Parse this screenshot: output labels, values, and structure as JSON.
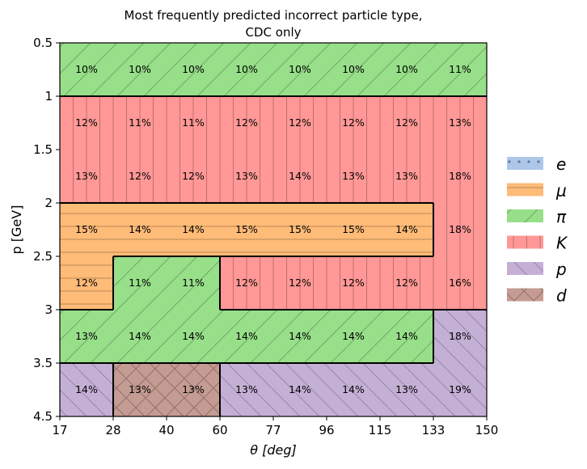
{
  "title_line1": "Most frequently predicted incorrect particle type,",
  "title_line2": "CDC only",
  "xlabel": "θ [deg]",
  "ylabel": "p [GeV]",
  "chart_data": {
    "type": "heatmap",
    "title": "Most frequently predicted incorrect particle type, CDC only",
    "xlabel": "θ [deg]",
    "ylabel": "p [GeV]",
    "x_ticks": [
      "17",
      "28",
      "40",
      "60",
      "77",
      "96",
      "115",
      "133",
      "150"
    ],
    "y_ticks": [
      "0.5",
      "1",
      "1.5",
      "2",
      "2.5",
      "3",
      "3.5",
      "4.5"
    ],
    "legend": [
      {
        "label": "e",
        "color": "#aec7e8",
        "hatch": "dots"
      },
      {
        "label": "μ",
        "color": "#ffbb78",
        "hatch": "horizontal"
      },
      {
        "label": "π",
        "color": "#98df8a",
        "hatch": "diagonal"
      },
      {
        "label": "K",
        "color": "#ff9896",
        "hatch": "vertical"
      },
      {
        "label": "p",
        "color": "#c5b0d5",
        "hatch": "backdiagonal"
      },
      {
        "label": "d",
        "color": "#c49c94",
        "hatch": "cross"
      }
    ],
    "legend_position": "right",
    "cell_particle": [
      [
        "π",
        "π",
        "π",
        "π",
        "π",
        "π",
        "π",
        "π"
      ],
      [
        "K",
        "K",
        "K",
        "K",
        "K",
        "K",
        "K",
        "K"
      ],
      [
        "K",
        "K",
        "K",
        "K",
        "K",
        "K",
        "K",
        "K"
      ],
      [
        "μ",
        "μ",
        "μ",
        "μ",
        "μ",
        "μ",
        "μ",
        "K"
      ],
      [
        "μ",
        "π",
        "π",
        "K",
        "K",
        "K",
        "K",
        "K"
      ],
      [
        "π",
        "π",
        "π",
        "π",
        "π",
        "π",
        "π",
        "p"
      ],
      [
        "p",
        "d",
        "d",
        "p",
        "p",
        "p",
        "p",
        "p"
      ]
    ],
    "cell_percent": [
      [
        "10%",
        "10%",
        "10%",
        "10%",
        "10%",
        "10%",
        "10%",
        "11%"
      ],
      [
        "12%",
        "11%",
        "11%",
        "12%",
        "12%",
        "12%",
        "12%",
        "13%"
      ],
      [
        "13%",
        "12%",
        "12%",
        "13%",
        "14%",
        "13%",
        "13%",
        "18%"
      ],
      [
        "15%",
        "14%",
        "14%",
        "15%",
        "15%",
        "15%",
        "14%",
        "18%"
      ],
      [
        "12%",
        "11%",
        "11%",
        "12%",
        "12%",
        "12%",
        "12%",
        "16%"
      ],
      [
        "13%",
        "14%",
        "14%",
        "14%",
        "14%",
        "14%",
        "14%",
        "18%"
      ],
      [
        "14%",
        "13%",
        "13%",
        "13%",
        "14%",
        "14%",
        "13%",
        "19%"
      ]
    ]
  }
}
